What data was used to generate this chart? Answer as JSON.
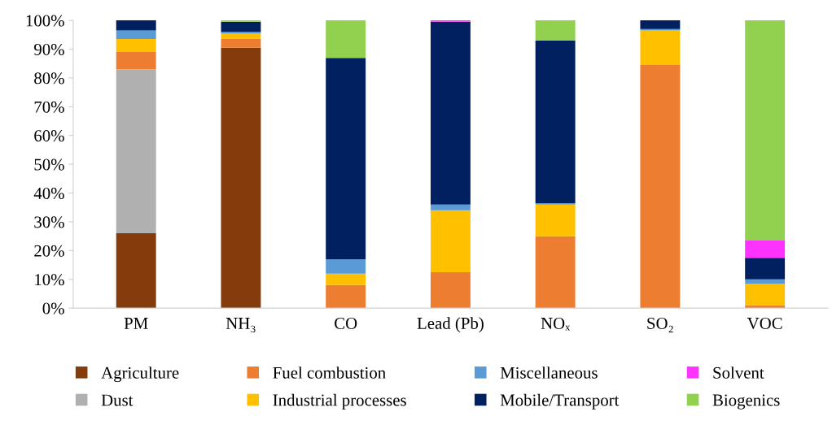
{
  "chart_data": {
    "type": "bar",
    "stacked": true,
    "categories": [
      "PM",
      "NH₃",
      "CO",
      "Lead (Pb)",
      "NOₓ",
      "SO₂",
      "VOC"
    ],
    "series": [
      {
        "name": "Agriculture",
        "color": "#843c0c",
        "values": [
          26,
          90.5,
          0,
          0,
          0,
          0,
          0
        ]
      },
      {
        "name": "Dust",
        "color": "#b0b0b0",
        "values": [
          57,
          0,
          0,
          0,
          0,
          0,
          0
        ]
      },
      {
        "name": "Fuel combustion",
        "color": "#ed7d31",
        "values": [
          6,
          3,
          8,
          12.5,
          25,
          84.5,
          1
        ]
      },
      {
        "name": "Industrial processes",
        "color": "#ffc000",
        "values": [
          4.5,
          2,
          4,
          21.5,
          11,
          12,
          7.5
        ]
      },
      {
        "name": "Miscellaneous",
        "color": "#5b9bd5",
        "values": [
          3,
          0.5,
          5,
          2,
          0.5,
          0.5,
          1.5
        ]
      },
      {
        "name": "Mobile/Transport",
        "color": "#002060",
        "values": [
          3.5,
          3.5,
          70,
          63.5,
          56.5,
          3,
          7.5
        ]
      },
      {
        "name": "Solvent",
        "color": "#ff33ff",
        "values": [
          0,
          0,
          0,
          0.5,
          0,
          0,
          6
        ]
      },
      {
        "name": "Biogenics",
        "color": "#92d050",
        "values": [
          0,
          0.5,
          13,
          0,
          7,
          0,
          76.5
        ]
      }
    ],
    "ylim": [
      0,
      100
    ],
    "yticks": [
      {
        "value": 0,
        "label": "0%"
      },
      {
        "value": 10,
        "label": "10%"
      },
      {
        "value": 20,
        "label": "20%"
      },
      {
        "value": 30,
        "label": "30%"
      },
      {
        "value": 40,
        "label": "40%"
      },
      {
        "value": 50,
        "label": "50%"
      },
      {
        "value": 60,
        "label": "60%"
      },
      {
        "value": 70,
        "label": "70%"
      },
      {
        "value": 80,
        "label": "80%"
      },
      {
        "value": 90,
        "label": "90%"
      },
      {
        "value": 100,
        "label": "100%"
      }
    ],
    "grid": false,
    "legend": "bottom"
  }
}
